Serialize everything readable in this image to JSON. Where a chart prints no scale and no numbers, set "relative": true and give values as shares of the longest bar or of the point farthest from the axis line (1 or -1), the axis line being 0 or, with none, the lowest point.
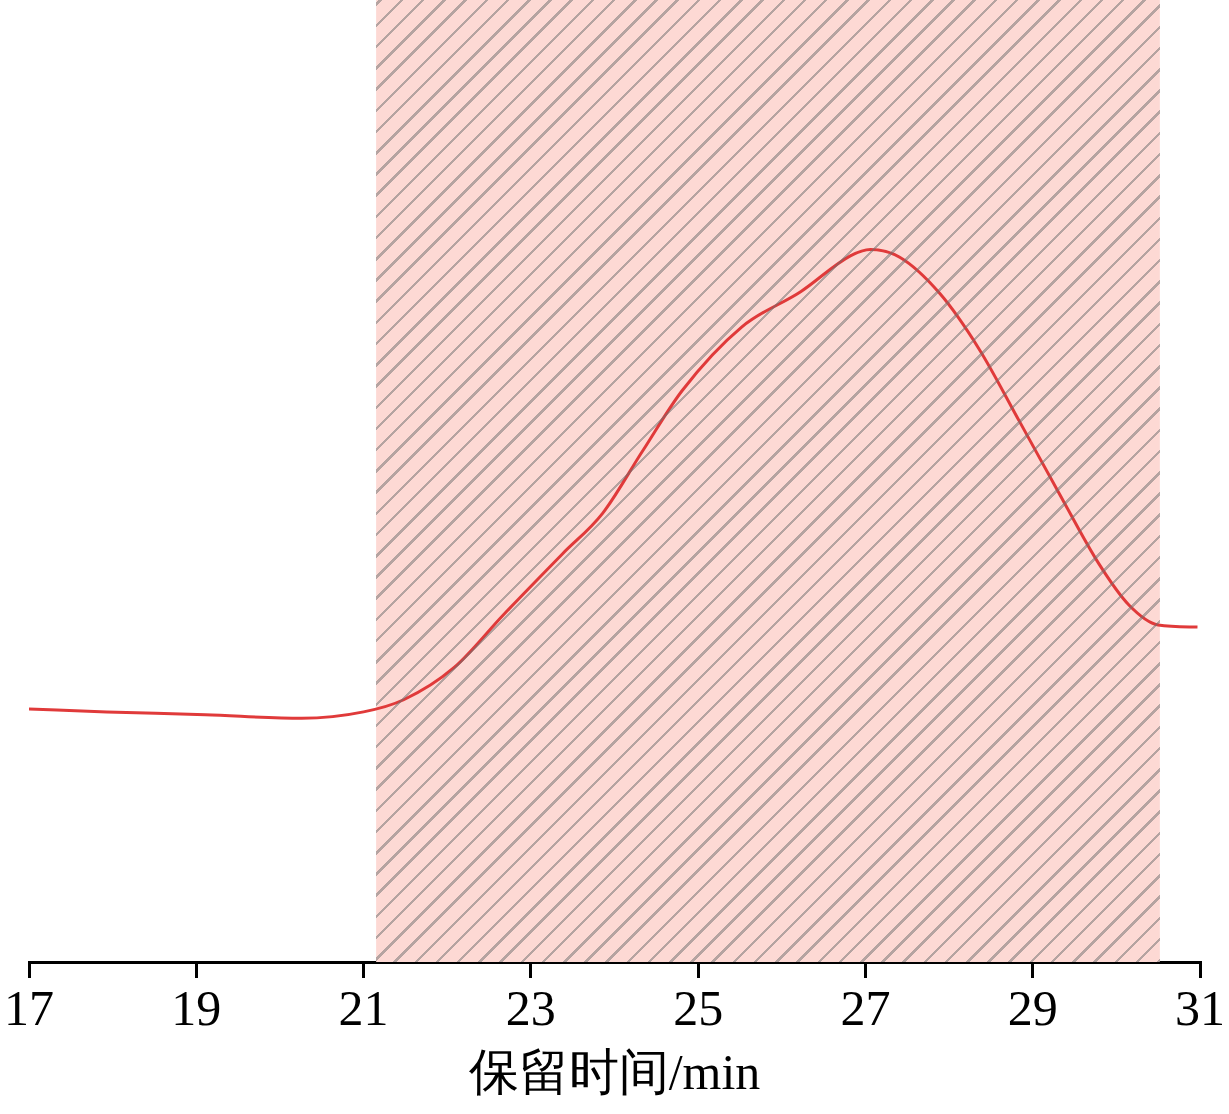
{
  "chart_data": {
    "type": "line",
    "relative": true,
    "xlabel": "保留时间/min",
    "xlim": [
      17,
      31
    ],
    "xticks": [
      17,
      19,
      21,
      23,
      25,
      27,
      29,
      31
    ],
    "grid": false,
    "legend": false,
    "marker": "none",
    "line_style": "solid",
    "bands": [
      {
        "axis": "x",
        "from": 21.15,
        "to": 30.52,
        "color": "#fdd9d4"
      }
    ],
    "series": [
      {
        "color": "#e03a3a",
        "x": [
          17,
          17.93,
          19.11,
          20.26,
          21.0,
          21.48,
          22.08,
          22.67,
          23.38,
          23.86,
          24.33,
          24.81,
          25.52,
          26.23,
          26.82,
          27.06,
          27.41,
          27.89,
          28.36,
          28.84,
          29.31,
          29.79,
          30.15,
          30.5,
          30.97
        ],
        "values": [
          0.355,
          0.351,
          0.347,
          0.342,
          0.351,
          0.368,
          0.413,
          0.487,
          0.573,
          0.63,
          0.716,
          0.802,
          0.891,
          0.941,
          0.991,
          1.0,
          0.989,
          0.938,
          0.86,
          0.759,
          0.659,
          0.559,
          0.501,
          0.473,
          0.47
        ]
      }
    ]
  }
}
